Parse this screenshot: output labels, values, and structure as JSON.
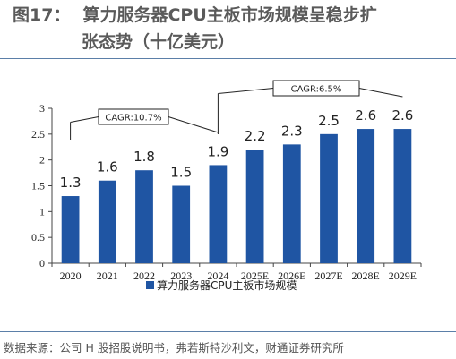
{
  "figure": {
    "number": "图17：",
    "title_line1": "算力服务器CPU主板市场规模呈稳步扩",
    "title_line2": "张态势（十亿美元）"
  },
  "source": "数据来源：公司 H 股招股说明书，弗若斯特沙利文，财通证券研究所",
  "colors": {
    "bar": "#1f55a3",
    "rule": "#5b7fa8",
    "axis": "#444444"
  },
  "chart_data": {
    "type": "bar",
    "title": "",
    "xlabel": "",
    "ylabel": "",
    "categories": [
      "2020",
      "2021",
      "2022",
      "2023",
      "2024",
      "2025E",
      "2026E",
      "2027E",
      "2028E",
      "2029E"
    ],
    "series": [
      {
        "name": "算力服务器CPU主板市场规模",
        "values": [
          1.3,
          1.6,
          1.8,
          1.5,
          1.9,
          2.2,
          2.3,
          2.5,
          2.6,
          2.6
        ]
      }
    ],
    "data_labels": [
      "1.3",
      "1.6",
      "1.8",
      "1.5",
      "1.9",
      "2.2",
      "2.3",
      "2.5",
      "2.6",
      "2.6"
    ],
    "y_ticks": [
      "0",
      "0.5",
      "1",
      "1.5",
      "2",
      "2.5",
      "3"
    ],
    "ylim": [
      0,
      3
    ],
    "grid": false,
    "legend": "bottom-center",
    "annotations": [
      {
        "text": "CAGR:10.7%",
        "from": "2020",
        "to": "2024"
      },
      {
        "text": "CAGR:6.5%",
        "from": "2024",
        "to": "2029E"
      }
    ]
  }
}
